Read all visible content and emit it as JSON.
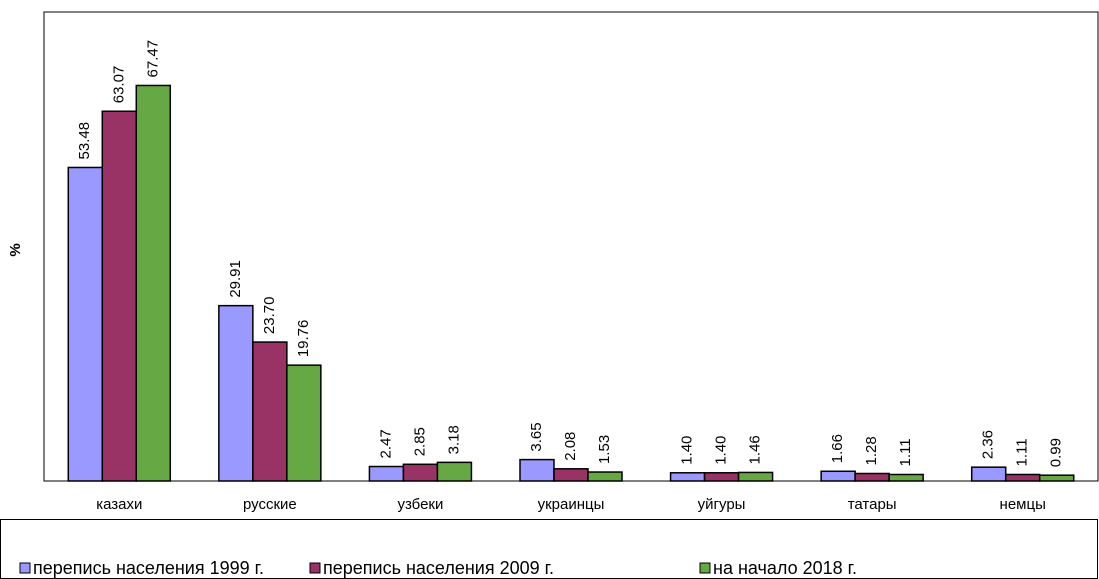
{
  "chart_data": {
    "type": "bar",
    "y_label": "%",
    "categories": [
      "казахи",
      "русские",
      "узбеки",
      "украинцы",
      "уйгуры",
      "татары",
      "немцы"
    ],
    "series": [
      {
        "name": "перепись населения 1999 г.",
        "color": "#9999ff",
        "values": [
          53.48,
          29.91,
          2.47,
          3.65,
          1.4,
          1.66,
          2.36
        ],
        "value_labels": [
          "53.48",
          "29.91",
          "2.47",
          "3.65",
          "1.40",
          "1.66",
          "2.36"
        ]
      },
      {
        "name": "перепись населения 2009 г.",
        "color": "#993366",
        "values": [
          63.07,
          23.7,
          2.85,
          2.08,
          1.4,
          1.28,
          1.11
        ],
        "value_labels": [
          "63.07",
          "23.70",
          "2.85",
          "2.08",
          "1.40",
          "1.28",
          "1.11"
        ]
      },
      {
        "name": "на начало 2018 г.",
        "color": "#66a844",
        "values": [
          67.47,
          19.76,
          3.18,
          1.53,
          1.46,
          1.11,
          0.99
        ],
        "value_labels": [
          "67.47",
          "19.76",
          "3.18",
          "1.53",
          "1.46",
          "1.11",
          "0.99"
        ]
      }
    ],
    "ylim": [
      0,
      80
    ]
  }
}
